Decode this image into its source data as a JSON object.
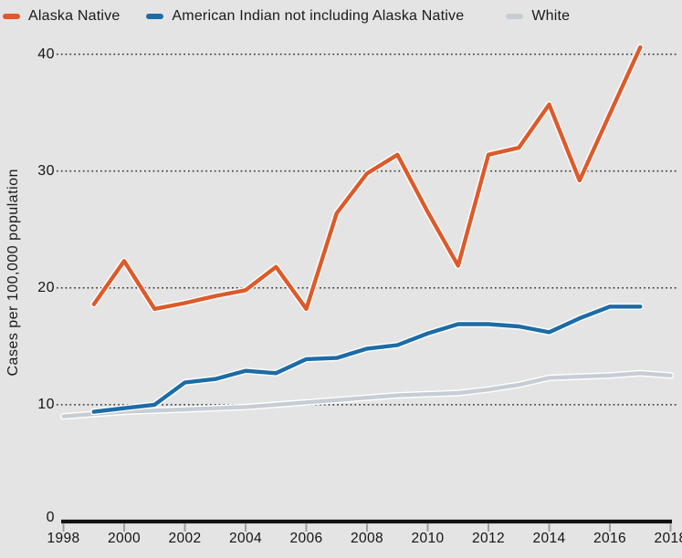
{
  "legend": {
    "items": [
      {
        "label": "Alaska Native",
        "color": "#dd5a2a"
      },
      {
        "label": "American Indian not including Alaska Native",
        "color": "#1c6ca6"
      },
      {
        "label": "White",
        "color": "#c7cdd4"
      }
    ]
  },
  "chart_data": {
    "type": "line",
    "title": "",
    "xlabel": "",
    "ylabel": "Cases per 100,000 population",
    "xlim": [
      1998,
      2018
    ],
    "ylim": [
      0,
      40
    ],
    "x_ticks": [
      1998,
      2000,
      2002,
      2004,
      2006,
      2008,
      2010,
      2012,
      2014,
      2016,
      2018
    ],
    "y_ticks": [
      0,
      10,
      20,
      30,
      40
    ],
    "grid": "horizontal-dotted",
    "legend_position": "top-left",
    "colors": {
      "background": "#e4e4e4",
      "gridline": "#2e2e2e",
      "axis": "#121212",
      "tick_mark": "#9ba0a6",
      "line_casing": "#ffffff"
    },
    "series": [
      {
        "name": "White",
        "color": "#c7cdd4",
        "x": [
          1998,
          1999,
          2000,
          2001,
          2002,
          2003,
          2004,
          2005,
          2006,
          2007,
          2008,
          2009,
          2010,
          2011,
          2012,
          2013,
          2014,
          2015,
          2016,
          2017,
          2018
        ],
        "values": [
          9.0,
          9.2,
          9.4,
          9.5,
          9.6,
          9.7,
          9.8,
          10.0,
          10.2,
          10.4,
          10.6,
          10.8,
          10.9,
          11.0,
          11.3,
          11.7,
          12.3,
          12.4,
          12.5,
          12.7,
          12.5
        ]
      },
      {
        "name": "American Indian not including Alaska Native",
        "color": "#1c6ca6",
        "x": [
          1999,
          2000,
          2001,
          2002,
          2003,
          2004,
          2005,
          2006,
          2007,
          2008,
          2009,
          2010,
          2011,
          2012,
          2013,
          2014,
          2015,
          2016,
          2017
        ],
        "values": [
          9.4,
          9.7,
          10.0,
          11.9,
          12.2,
          12.9,
          12.7,
          13.9,
          14.0,
          14.8,
          15.1,
          16.1,
          16.9,
          16.9,
          16.7,
          16.2,
          17.4,
          18.4,
          18.4
        ]
      },
      {
        "name": "Alaska Native",
        "color": "#dd5a2a",
        "x": [
          1999,
          2000,
          2001,
          2002,
          2003,
          2004,
          2005,
          2006,
          2007,
          2008,
          2009,
          2010,
          2011,
          2012,
          2013,
          2014,
          2015,
          2016,
          2017
        ],
        "values": [
          18.6,
          22.3,
          18.2,
          18.7,
          19.3,
          19.8,
          21.8,
          18.2,
          26.4,
          29.8,
          31.4,
          26.5,
          21.9,
          31.4,
          32.0,
          35.7,
          29.2,
          34.9,
          40.6
        ]
      }
    ]
  }
}
